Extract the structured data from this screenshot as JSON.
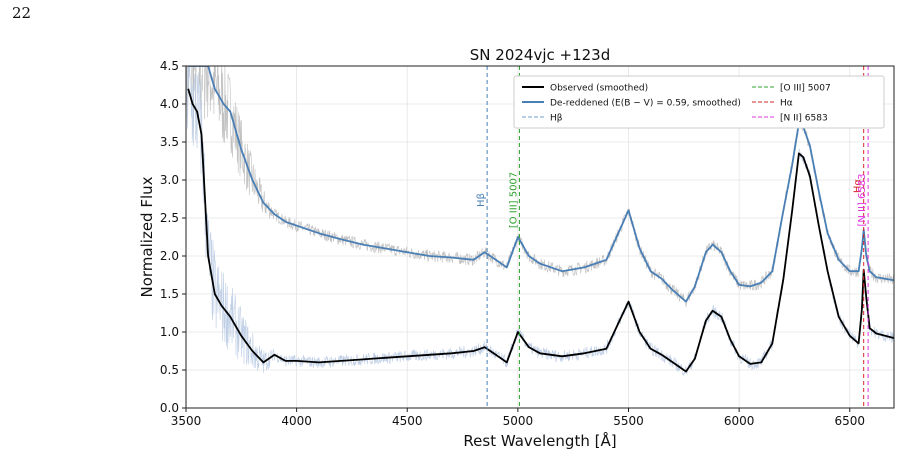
{
  "page_number": "22",
  "chart_data": {
    "type": "line",
    "title": "SN 2024vjc +123d",
    "xlabel": "Rest Wavelength [Å]",
    "ylabel": "Normalized Flux",
    "xlim": [
      3500,
      6700
    ],
    "ylim": [
      0.0,
      4.5
    ],
    "xticks": [
      3500,
      4000,
      4500,
      5000,
      5500,
      6000,
      6500
    ],
    "xtick_labels": [
      "3500",
      "4000",
      "4500",
      "5000",
      "5500",
      "6000",
      "6500"
    ],
    "yticks": [
      0,
      0.5,
      1.0,
      1.5,
      2.0,
      2.5,
      3.0,
      3.5,
      4.0,
      4.5
    ],
    "ytick_labels": [
      "0.0",
      "0.5",
      "1.0",
      "1.5",
      "2.0",
      "2.5",
      "3.0",
      "3.5",
      "4.0",
      "4.5"
    ],
    "grid": true,
    "legend_position": "top-right",
    "series": [
      {
        "name": "Observed (smoothed)",
        "color": "#000000",
        "x": [
          3510,
          3530,
          3550,
          3570,
          3600,
          3630,
          3660,
          3700,
          3750,
          3800,
          3850,
          3900,
          3950,
          4000,
          4100,
          4200,
          4300,
          4400,
          4500,
          4600,
          4700,
          4800,
          4850,
          4900,
          4950,
          5000,
          5050,
          5100,
          5200,
          5300,
          5400,
          5500,
          5550,
          5600,
          5650,
          5700,
          5760,
          5800,
          5850,
          5880,
          5920,
          5960,
          6000,
          6050,
          6100,
          6150,
          6200,
          6240,
          6270,
          6290,
          6320,
          6360,
          6400,
          6450,
          6500,
          6540,
          6555,
          6563,
          6575,
          6590,
          6620,
          6660,
          6700
        ],
        "y": [
          4.2,
          4.0,
          3.9,
          3.6,
          2.0,
          1.5,
          1.35,
          1.2,
          0.95,
          0.75,
          0.6,
          0.7,
          0.62,
          0.62,
          0.6,
          0.62,
          0.64,
          0.66,
          0.68,
          0.7,
          0.72,
          0.75,
          0.8,
          0.7,
          0.6,
          1.0,
          0.8,
          0.72,
          0.68,
          0.72,
          0.78,
          1.4,
          1.0,
          0.78,
          0.7,
          0.6,
          0.48,
          0.65,
          1.15,
          1.28,
          1.2,
          0.9,
          0.68,
          0.58,
          0.6,
          0.85,
          1.7,
          2.6,
          3.35,
          3.3,
          3.05,
          2.4,
          1.8,
          1.2,
          0.95,
          0.85,
          1.3,
          1.82,
          1.45,
          1.05,
          0.98,
          0.95,
          0.92
        ]
      },
      {
        "name": "De-reddened (E(B − V) = 0.59, smoothed)",
        "color": "#4a7fb5",
        "x": [
          3510,
          3530,
          3560,
          3600,
          3630,
          3670,
          3700,
          3750,
          3800,
          3850,
          3900,
          3950,
          4000,
          4100,
          4200,
          4300,
          4400,
          4500,
          4600,
          4700,
          4800,
          4850,
          4900,
          4950,
          5000,
          5050,
          5100,
          5200,
          5300,
          5400,
          5500,
          5550,
          5600,
          5650,
          5700,
          5760,
          5800,
          5850,
          5880,
          5920,
          5960,
          6000,
          6050,
          6100,
          6150,
          6200,
          6240,
          6270,
          6290,
          6320,
          6360,
          6400,
          6450,
          6500,
          6540,
          6555,
          6563,
          6575,
          6590,
          6620,
          6660,
          6700
        ],
        "y": [
          4.5,
          4.5,
          4.5,
          4.5,
          4.2,
          4.0,
          3.9,
          3.4,
          3.0,
          2.7,
          2.55,
          2.45,
          2.4,
          2.3,
          2.22,
          2.15,
          2.1,
          2.05,
          2.0,
          1.98,
          1.95,
          2.05,
          1.95,
          1.85,
          2.25,
          2.0,
          1.9,
          1.8,
          1.85,
          1.95,
          2.6,
          2.1,
          1.8,
          1.7,
          1.55,
          1.4,
          1.6,
          2.05,
          2.15,
          2.05,
          1.8,
          1.62,
          1.6,
          1.65,
          1.8,
          2.6,
          3.2,
          3.75,
          3.7,
          3.45,
          2.85,
          2.3,
          1.95,
          1.8,
          1.8,
          2.1,
          2.35,
          2.0,
          1.8,
          1.72,
          1.7,
          1.68
        ]
      }
    ],
    "vertical_lines": [
      {
        "label": "Hβ",
        "x": 4861,
        "color": "#4a7fb5"
      },
      {
        "label": "[O III] 5007",
        "x": 5007,
        "color": "#2ca02c"
      },
      {
        "label": "Hα",
        "x": 6563,
        "color": "#d62728"
      },
      {
        "label": "[N II] 6583",
        "x": 6583,
        "color": "#e331e3"
      }
    ],
    "legend": [
      {
        "label": "Observed (smoothed)",
        "color": "#000000",
        "style": "solid"
      },
      {
        "label": "[O III] 5007",
        "color": "#2ca02c",
        "style": "dashed"
      },
      {
        "label": "De-reddened (E(B − V) = 0.59, smoothed)",
        "color": "#4a7fb5",
        "style": "solid"
      },
      {
        "label": "Hα",
        "color": "#d62728",
        "style": "dashed"
      },
      {
        "label": "Hβ",
        "color": "#6f9fd0",
        "style": "dashed"
      },
      {
        "label": "[N II] 6583",
        "color": "#e331e3",
        "style": "dashed"
      }
    ]
  }
}
